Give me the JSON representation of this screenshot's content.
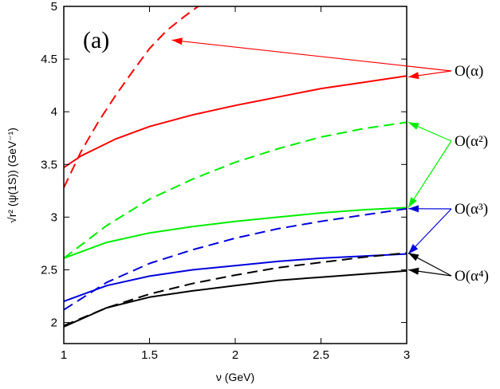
{
  "chart_data": {
    "type": "line",
    "panel_label": "(a)",
    "xlabel": "ν (GeV)",
    "ylabel": "√r² (ψ(1S)) (GeV⁻¹)",
    "xlim": [
      1,
      3
    ],
    "ylim": [
      1.8,
      5
    ],
    "x_ticks": [
      "1",
      "1.5",
      "2",
      "2.5",
      "3"
    ],
    "y_ticks": [
      "2",
      "2.5",
      "3",
      "3.5",
      "4",
      "4.5",
      "5"
    ],
    "grid": false,
    "series": [
      {
        "order": "O(α)",
        "style": "solid",
        "color": "#ff0000",
        "x": [
          1,
          1.1,
          1.3,
          1.5,
          1.75,
          2,
          2.25,
          2.5,
          2.75,
          3
        ],
        "y": [
          3.47,
          3.58,
          3.74,
          3.86,
          3.97,
          4.06,
          4.14,
          4.22,
          4.28,
          4.34
        ]
      },
      {
        "order": "O(α)",
        "style": "dashed",
        "color": "#ff0000",
        "x": [
          1,
          1.1,
          1.2,
          1.3,
          1.4,
          1.5,
          1.6,
          1.7,
          1.8
        ],
        "y": [
          3.28,
          3.62,
          3.9,
          4.15,
          4.38,
          4.6,
          4.77,
          4.9,
          5.02
        ]
      },
      {
        "order": "O(α²)",
        "style": "solid",
        "color": "#00ee00",
        "x": [
          1,
          1.25,
          1.5,
          1.75,
          2,
          2.25,
          2.5,
          2.75,
          3
        ],
        "y": [
          2.61,
          2.76,
          2.85,
          2.91,
          2.96,
          3.0,
          3.04,
          3.07,
          3.09
        ]
      },
      {
        "order": "O(α²)",
        "style": "dashed",
        "color": "#00ee00",
        "x": [
          1,
          1.25,
          1.5,
          1.75,
          2,
          2.25,
          2.5,
          2.75,
          3
        ],
        "y": [
          2.61,
          2.92,
          3.17,
          3.36,
          3.52,
          3.65,
          3.76,
          3.84,
          3.9
        ]
      },
      {
        "order": "O(α³)",
        "style": "solid",
        "color": "#0000dd",
        "x": [
          1,
          1.25,
          1.5,
          1.75,
          2,
          2.25,
          2.5,
          2.75,
          3
        ],
        "y": [
          2.2,
          2.35,
          2.44,
          2.5,
          2.54,
          2.58,
          2.61,
          2.63,
          2.65
        ]
      },
      {
        "order": "O(α³)",
        "style": "dashed",
        "color": "#0000dd",
        "x": [
          1,
          1.25,
          1.5,
          1.75,
          2,
          2.25,
          2.5,
          2.75,
          3
        ],
        "y": [
          2.12,
          2.38,
          2.56,
          2.69,
          2.8,
          2.89,
          2.96,
          3.02,
          3.08
        ]
      },
      {
        "order": "O(α⁴)",
        "style": "solid",
        "color": "#000000",
        "x": [
          1,
          1.25,
          1.5,
          1.75,
          2,
          2.25,
          2.5,
          2.75,
          3
        ],
        "y": [
          1.96,
          2.14,
          2.24,
          2.3,
          2.35,
          2.4,
          2.43,
          2.46,
          2.49
        ]
      },
      {
        "order": "O(α⁴)",
        "style": "dashed",
        "color": "#000000",
        "x": [
          1,
          1.25,
          1.5,
          1.75,
          2,
          2.25,
          2.5,
          2.75,
          3
        ],
        "y": [
          1.97,
          2.14,
          2.27,
          2.37,
          2.45,
          2.52,
          2.57,
          2.62,
          2.66
        ]
      }
    ],
    "annotations": [
      {
        "label": "O(α)",
        "arrow_color": "#ff0000",
        "targets": [
          [
            1.63,
            4.68
          ],
          [
            3.0,
            4.33
          ]
        ]
      },
      {
        "label": "O(α²)",
        "arrow_color": "#00ee00",
        "targets": [
          [
            3.0,
            3.9
          ],
          [
            3.0,
            3.09
          ]
        ]
      },
      {
        "label": "O(α³)",
        "arrow_color": "#0000dd",
        "targets": [
          [
            3.0,
            3.08
          ],
          [
            3.0,
            2.65
          ]
        ]
      },
      {
        "label": "O(α⁴)",
        "arrow_color": "#000000",
        "targets": [
          [
            3.0,
            2.66
          ],
          [
            3.0,
            2.5
          ]
        ]
      }
    ]
  }
}
